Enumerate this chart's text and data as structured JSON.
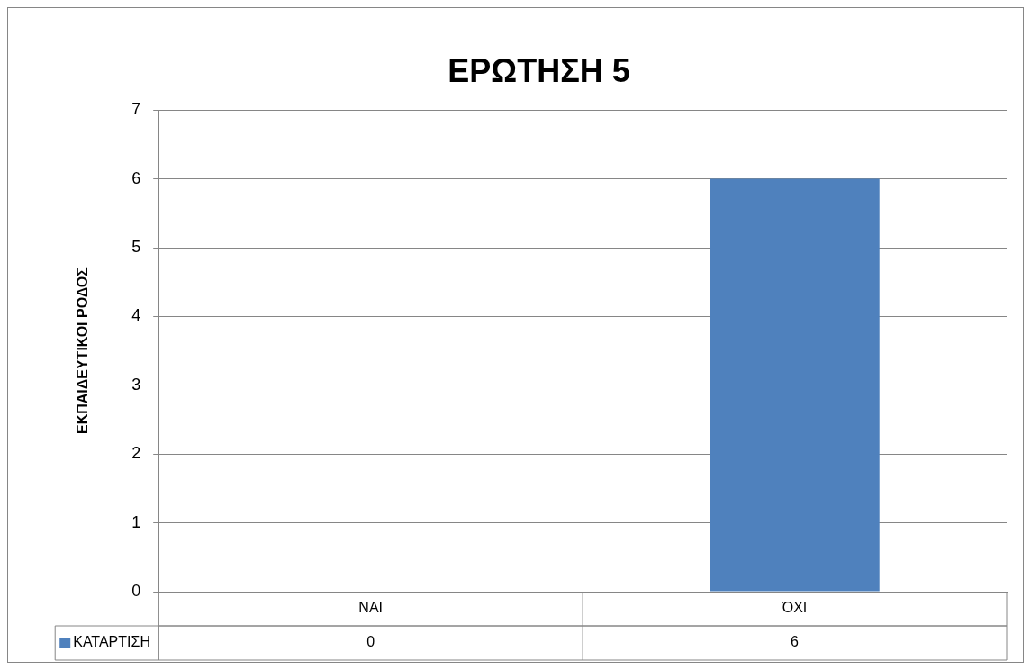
{
  "chart_data": {
    "type": "bar",
    "title": "ΕΡΩΤΗΣΗ 5",
    "ylabel": "ΕΚΠΑΙΔΕΥΤΙΚΟΙ ΡΟΔΟΣ",
    "categories": [
      "ΝΑΙ",
      "ΌΧΙ"
    ],
    "series": [
      {
        "name": "ΚΑΤΑΡΤΙΣΗ",
        "color": "#4f81bd",
        "values": [
          0,
          6
        ]
      }
    ],
    "ylim": [
      0,
      7
    ],
    "yticks": [
      0,
      1,
      2,
      3,
      4,
      5,
      6,
      7
    ],
    "grid": "y",
    "legend": "bottom",
    "data_labels": true
  }
}
